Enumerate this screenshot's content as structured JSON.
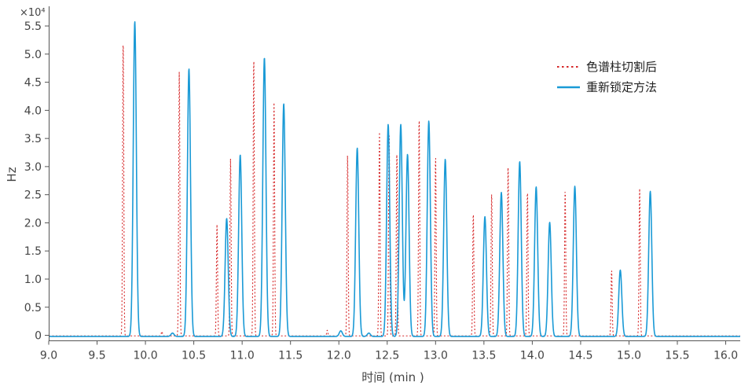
{
  "chart_data": {
    "type": "line",
    "title": "",
    "xlabel": "时间 (min )",
    "ylabel": "Hz",
    "y_multiplier_label": "×10⁴",
    "xlim": [
      9.0,
      16.15
    ],
    "ylim": [
      -0.3,
      5.85
    ],
    "x_ticks": [
      9.0,
      9.5,
      10.0,
      10.5,
      11.0,
      11.5,
      12.0,
      12.5,
      13.0,
      13.5,
      14.0,
      14.5,
      15.0,
      15.5,
      16.0
    ],
    "x_tick_labels": [
      "9.0",
      "9.5",
      "10.0",
      "10.5",
      "11.0",
      "11.5",
      "12.0",
      "12.5",
      "13.0",
      "13.5",
      "14.0",
      "14.5",
      "15.0",
      "15.5",
      "16.0"
    ],
    "y_ticks": [
      0,
      0.5,
      1.0,
      1.5,
      2.0,
      2.5,
      3.0,
      3.5,
      4.0,
      4.5,
      5.0,
      5.5
    ],
    "y_tick_labels": [
      "0",
      "0.5",
      "1.0",
      "1.5",
      "2.0",
      "2.5",
      "3.0",
      "3.5",
      "4.0",
      "4.5",
      "5.0",
      "5.5"
    ],
    "grid": false,
    "legend_position": "top-right",
    "series": [
      {
        "name": "色谱柱切割后",
        "style": "dotted",
        "color": "#d62728",
        "peaks": [
          {
            "x": 9.77,
            "y": 5.3
          },
          {
            "x": 10.17,
            "y": 0.08
          },
          {
            "x": 10.35,
            "y": 4.7
          },
          {
            "x": 10.74,
            "y": 1.98
          },
          {
            "x": 10.88,
            "y": 3.15
          },
          {
            "x": 11.12,
            "y": 4.97
          },
          {
            "x": 11.33,
            "y": 4.15
          },
          {
            "x": 11.88,
            "y": 0.1
          },
          {
            "x": 12.09,
            "y": 3.22
          },
          {
            "x": 12.42,
            "y": 3.62
          },
          {
            "x": 12.52,
            "y": 3.65
          },
          {
            "x": 12.6,
            "y": 3.28
          },
          {
            "x": 12.83,
            "y": 3.9
          },
          {
            "x": 13.0,
            "y": 3.2
          },
          {
            "x": 13.39,
            "y": 2.2
          },
          {
            "x": 13.58,
            "y": 2.55
          },
          {
            "x": 13.75,
            "y": 3.05
          },
          {
            "x": 13.95,
            "y": 2.6
          },
          {
            "x": 14.34,
            "y": 2.62
          },
          {
            "x": 14.82,
            "y": 1.18
          },
          {
            "x": 15.11,
            "y": 2.62
          }
        ]
      },
      {
        "name": "重新锁定方法",
        "style": "solid",
        "color": "#1a9ad6",
        "peaks": [
          {
            "x": 9.89,
            "y": 5.6
          },
          {
            "x": 10.28,
            "y": 0.06
          },
          {
            "x": 10.45,
            "y": 4.76
          },
          {
            "x": 10.84,
            "y": 2.1
          },
          {
            "x": 10.98,
            "y": 3.23
          },
          {
            "x": 11.23,
            "y": 4.96
          },
          {
            "x": 11.43,
            "y": 4.14
          },
          {
            "x": 12.02,
            "y": 0.1
          },
          {
            "x": 12.19,
            "y": 3.35
          },
          {
            "x": 12.31,
            "y": 0.06
          },
          {
            "x": 12.51,
            "y": 3.77
          },
          {
            "x": 12.64,
            "y": 3.77
          },
          {
            "x": 12.71,
            "y": 3.24
          },
          {
            "x": 12.93,
            "y": 3.83
          },
          {
            "x": 13.1,
            "y": 3.15
          },
          {
            "x": 13.51,
            "y": 2.13
          },
          {
            "x": 13.68,
            "y": 2.56
          },
          {
            "x": 13.87,
            "y": 3.11
          },
          {
            "x": 14.04,
            "y": 2.66
          },
          {
            "x": 14.18,
            "y": 2.03
          },
          {
            "x": 14.44,
            "y": 2.67
          },
          {
            "x": 14.91,
            "y": 1.18
          },
          {
            "x": 15.22,
            "y": 2.58
          }
        ]
      }
    ]
  }
}
